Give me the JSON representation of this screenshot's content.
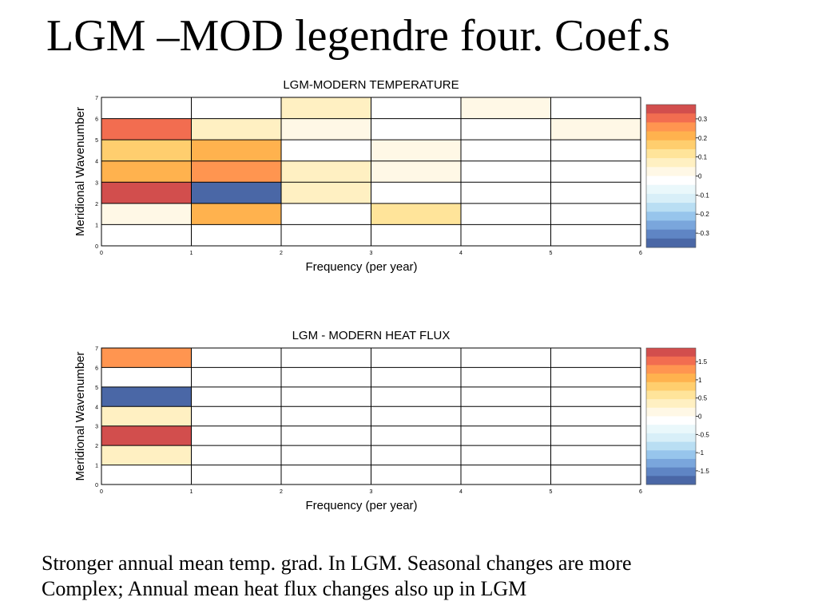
{
  "slide": {
    "title": "LGM –MOD legendre four. Coef.s",
    "caption_line1": "Stronger annual mean temp. grad. In LGM. Seasonal changes are more",
    "caption_line2": "Complex; Annual mean heat flux changes also up in LGM"
  },
  "chart_data": [
    {
      "type": "heatmap",
      "title": "LGM-MODERN TEMPERATURE",
      "xlabel": "Frequency (per year)",
      "ylabel": "Meridional Wavenumber",
      "xlim": [
        0,
        6
      ],
      "ylim": [
        0,
        7
      ],
      "x_ticks": [
        "0",
        "1",
        "2",
        "3",
        "4",
        "5",
        "6"
      ],
      "y_ticks": [
        "0",
        "1",
        "2",
        "3",
        "4",
        "5",
        "6",
        "7"
      ],
      "grid": true,
      "colorbar": {
        "range": [
          -0.375,
          0.375
        ],
        "ticks": [
          0.3,
          0.2,
          0.1,
          0,
          -0.1,
          -0.2,
          -0.3
        ],
        "tick_labels": [
          "0.3",
          "0.2",
          "0.1",
          "0",
          "-0.1",
          "-0.2",
          "-0.3"
        ]
      },
      "cells": [
        {
          "freq": 0,
          "wavenumber": 1,
          "value": 0.02
        },
        {
          "freq": 0,
          "wavenumber": 2,
          "value": 0.35
        },
        {
          "freq": 0,
          "wavenumber": 3,
          "value": 0.22
        },
        {
          "freq": 0,
          "wavenumber": 4,
          "value": 0.17
        },
        {
          "freq": 0,
          "wavenumber": 5,
          "value": 0.29
        },
        {
          "freq": 1,
          "wavenumber": 0,
          "value": -0.04
        },
        {
          "freq": 1,
          "wavenumber": 1,
          "value": 0.22
        },
        {
          "freq": 1,
          "wavenumber": 2,
          "value": -0.33
        },
        {
          "freq": 1,
          "wavenumber": 3,
          "value": 0.25
        },
        {
          "freq": 1,
          "wavenumber": 4,
          "value": 0.22
        },
        {
          "freq": 1,
          "wavenumber": 5,
          "value": 0.09
        },
        {
          "freq": 2,
          "wavenumber": 1,
          "value": -0.02
        },
        {
          "freq": 2,
          "wavenumber": 2,
          "value": 0.08
        },
        {
          "freq": 2,
          "wavenumber": 3,
          "value": 0.08
        },
        {
          "freq": 2,
          "wavenumber": 5,
          "value": 0.03
        },
        {
          "freq": 2,
          "wavenumber": 6,
          "value": 0.05
        },
        {
          "freq": 3,
          "wavenumber": 1,
          "value": 0.13
        },
        {
          "freq": 3,
          "wavenumber": 3,
          "value": 0.03
        },
        {
          "freq": 3,
          "wavenumber": 4,
          "value": 0.03
        },
        {
          "freq": 4,
          "wavenumber": 1,
          "value": -0.03
        },
        {
          "freq": 4,
          "wavenumber": 6,
          "value": 0.04
        },
        {
          "freq": 5,
          "wavenumber": 5,
          "value": 0.04
        }
      ]
    },
    {
      "type": "heatmap",
      "title": "LGM - MODERN HEAT FLUX",
      "xlabel": "Frequency (per year)",
      "ylabel": "Meridional Wavenumber",
      "xlim": [
        0,
        6
      ],
      "ylim": [
        0,
        7
      ],
      "x_ticks": [
        "0",
        "1",
        "2",
        "3",
        "4",
        "5",
        "6"
      ],
      "y_ticks": [
        "0",
        "1",
        "2",
        "3",
        "4",
        "5",
        "6",
        "7"
      ],
      "grid": true,
      "colorbar": {
        "range": [
          -1.875,
          1.875
        ],
        "ticks": [
          1.5,
          1,
          0.5,
          0,
          -0.5,
          -1,
          -1.5
        ],
        "tick_labels": [
          "1.5",
          "1",
          "0.5",
          "0",
          "-0.5",
          "-1",
          "-1.5"
        ]
      },
      "cells": [
        {
          "freq": 0,
          "wavenumber": 1,
          "value": 0.4
        },
        {
          "freq": 0,
          "wavenumber": 2,
          "value": 1.8
        },
        {
          "freq": 0,
          "wavenumber": 3,
          "value": 0.4
        },
        {
          "freq": 0,
          "wavenumber": 4,
          "value": -1.8
        },
        {
          "freq": 0,
          "wavenumber": 5,
          "value": -0.1
        },
        {
          "freq": 0,
          "wavenumber": 6,
          "value": 1.2
        }
      ]
    }
  ]
}
